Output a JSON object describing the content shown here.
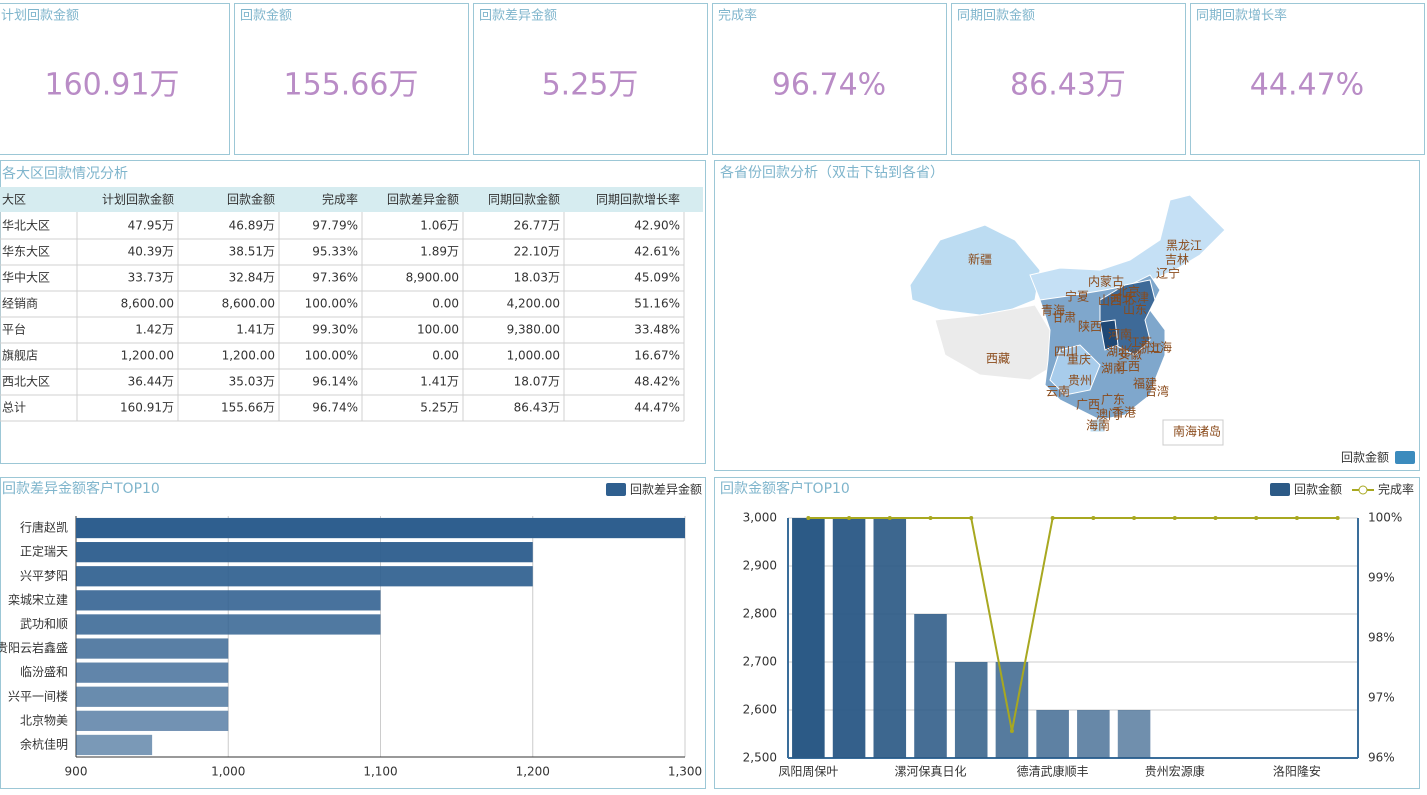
{
  "kpis": [
    {
      "title": "计划回款金额",
      "value": "160.91万"
    },
    {
      "title": "回款金额",
      "value": "155.66万"
    },
    {
      "title": "回款差异金额",
      "value": "5.25万"
    },
    {
      "title": "完成率",
      "value": "96.74%"
    },
    {
      "title": "同期回款金额",
      "value": "86.43万"
    },
    {
      "title": "同期回款增长率",
      "value": "44.47%"
    }
  ],
  "table": {
    "title": "各大区回款情况分析",
    "headers": [
      "大区",
      "计划回款金额",
      "回款金额",
      "完成率",
      "回款差异金额",
      "同期回款金额",
      "同期回款增长率"
    ],
    "rows": [
      [
        "华北大区",
        "47.95万",
        "46.89万",
        "97.79%",
        "1.06万",
        "26.77万",
        "42.90%"
      ],
      [
        "华东大区",
        "40.39万",
        "38.51万",
        "95.33%",
        "1.89万",
        "22.10万",
        "42.61%"
      ],
      [
        "华中大区",
        "33.73万",
        "32.84万",
        "97.36%",
        "8,900.00",
        "18.03万",
        "45.09%"
      ],
      [
        "经销商",
        "8,600.00",
        "8,600.00",
        "100.00%",
        "0.00",
        "4,200.00",
        "51.16%"
      ],
      [
        "平台",
        "1.42万",
        "1.41万",
        "99.30%",
        "100.00",
        "9,380.00",
        "33.48%"
      ],
      [
        "旗舰店",
        "1,200.00",
        "1,200.00",
        "100.00%",
        "0.00",
        "1,000.00",
        "16.67%"
      ],
      [
        "西北大区",
        "36.44万",
        "35.03万",
        "96.14%",
        "1.41万",
        "18.07万",
        "48.42%"
      ],
      [
        "总计",
        "160.91万",
        "155.66万",
        "96.74%",
        "5.25万",
        "86.43万",
        "44.47%"
      ]
    ]
  },
  "map": {
    "title": "各省份回款分析（双击下钻到各省）",
    "legend": "回款金额",
    "color": "#3b8bbd",
    "labels": [
      "新疆",
      "西藏",
      "青海",
      "甘肃",
      "宁夏",
      "内蒙古",
      "黑龙江",
      "吉林",
      "辽宁",
      "山西",
      "陕西",
      "四川",
      "重庆",
      "湖北",
      "湖南",
      "贵州",
      "云南",
      "广西",
      "广东",
      "海南",
      "福建",
      "台湾",
      "香港",
      "澳门",
      "江西",
      "浙江",
      "上海",
      "江苏",
      "安徽",
      "河南",
      "山东",
      "北京",
      "天津",
      "河北",
      "南海诸岛"
    ]
  },
  "chart_data": [
    {
      "type": "hbar",
      "title": "回款差异金额客户TOP10",
      "categories": [
        "行唐赵凯",
        "正定瑞天",
        "兴平梦阳",
        "栾城宋立建",
        "武功和顺",
        "贵阳云岩鑫盛",
        "临汾盛和",
        "兴平一间楼",
        "北京物美",
        "余杭佳明"
      ],
      "series": [
        {
          "name": "回款差异金额",
          "color": "#2f5f8f",
          "values": [
            1300,
            1200,
            1200,
            1100,
            1100,
            1000,
            1000,
            1000,
            1000,
            950
          ]
        }
      ],
      "xlim": [
        900,
        1300
      ],
      "xticks": [
        900,
        {
          "value": 1000,
          "label": "1,000"
        },
        {
          "value": 1100,
          "label": "1,100"
        },
        {
          "value": 1200,
          "label": "1,200"
        },
        {
          "value": 1300,
          "label": "1,300"
        }
      ],
      "grid": true
    },
    {
      "type": "combo",
      "title": "回款金额客户TOP10",
      "categories": [
        "凤阳周保叶",
        null,
        null,
        "漯河保真日化",
        null,
        null,
        "德清武康顺丰",
        null,
        null,
        "贵州宏源康",
        null,
        null,
        "洛阳隆安",
        null
      ],
      "series": [
        {
          "name": "回款金额",
          "type": "bar",
          "color": "#2c5a86",
          "values": [
            3000,
            3000,
            3000,
            2800,
            2700,
            2700,
            2600,
            2600,
            2600,
            null,
            null,
            null,
            null,
            null
          ]
        },
        {
          "name": "完成率",
          "type": "line",
          "axis": "y2",
          "color": "#a8a820",
          "values": [
            100,
            100,
            100,
            100,
            100,
            96.45,
            100,
            100,
            100,
            100,
            100,
            100,
            100,
            100
          ]
        }
      ],
      "ylim": [
        2500,
        3000
      ],
      "yticks": [
        {
          "value": 2500,
          "label": "2,500"
        },
        {
          "value": 2600,
          "label": "2,600"
        },
        {
          "value": 2700,
          "label": "2,700"
        },
        {
          "value": 2800,
          "label": "2,800"
        },
        {
          "value": 2900,
          "label": "2,900"
        },
        {
          "value": 3000,
          "label": "3,000"
        }
      ],
      "y2lim": [
        96,
        100
      ],
      "y2ticks": [
        {
          "value": 96,
          "label": "96%"
        },
        {
          "value": 97,
          "label": "97%"
        },
        {
          "value": 98,
          "label": "98%"
        },
        {
          "value": 99,
          "label": "99%"
        },
        {
          "value": 100,
          "label": "100%"
        }
      ],
      "grid": true
    }
  ]
}
